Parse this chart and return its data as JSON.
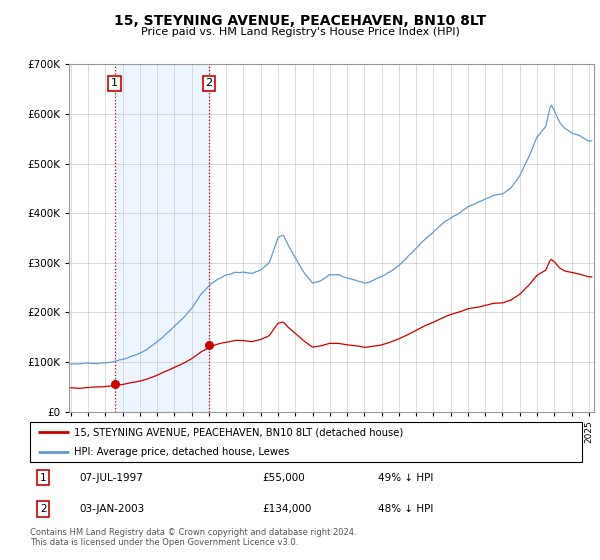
{
  "title": "15, STEYNING AVENUE, PEACEHAVEN, BN10 8LT",
  "subtitle": "Price paid vs. HM Land Registry's House Price Index (HPI)",
  "legend_line1": "15, STEYNING AVENUE, PEACEHAVEN, BN10 8LT (detached house)",
  "legend_line2": "HPI: Average price, detached house, Lewes",
  "transaction1_date": "07-JUL-1997",
  "transaction1_price": "£55,000",
  "transaction1_hpi": "49% ↓ HPI",
  "transaction2_date": "03-JAN-2003",
  "transaction2_price": "£134,000",
  "transaction2_hpi": "48% ↓ HPI",
  "footnote": "Contains HM Land Registry data © Crown copyright and database right 2024.\nThis data is licensed under the Open Government Licence v3.0.",
  "red_color": "#cc0000",
  "blue_color": "#6699cc",
  "blue_fill": "#ddeeff",
  "background_color": "#ffffff",
  "grid_color": "#cccccc",
  "ylim": [
    0,
    700000
  ],
  "yticks": [
    0,
    100000,
    200000,
    300000,
    400000,
    500000,
    600000,
    700000
  ],
  "transaction1_x": 1997.54,
  "transaction1_y": 55000,
  "transaction2_x": 2003.01,
  "transaction2_y": 134000,
  "xmin": 1995.0,
  "xmax": 2025.3,
  "hatch_start": 2025.0
}
